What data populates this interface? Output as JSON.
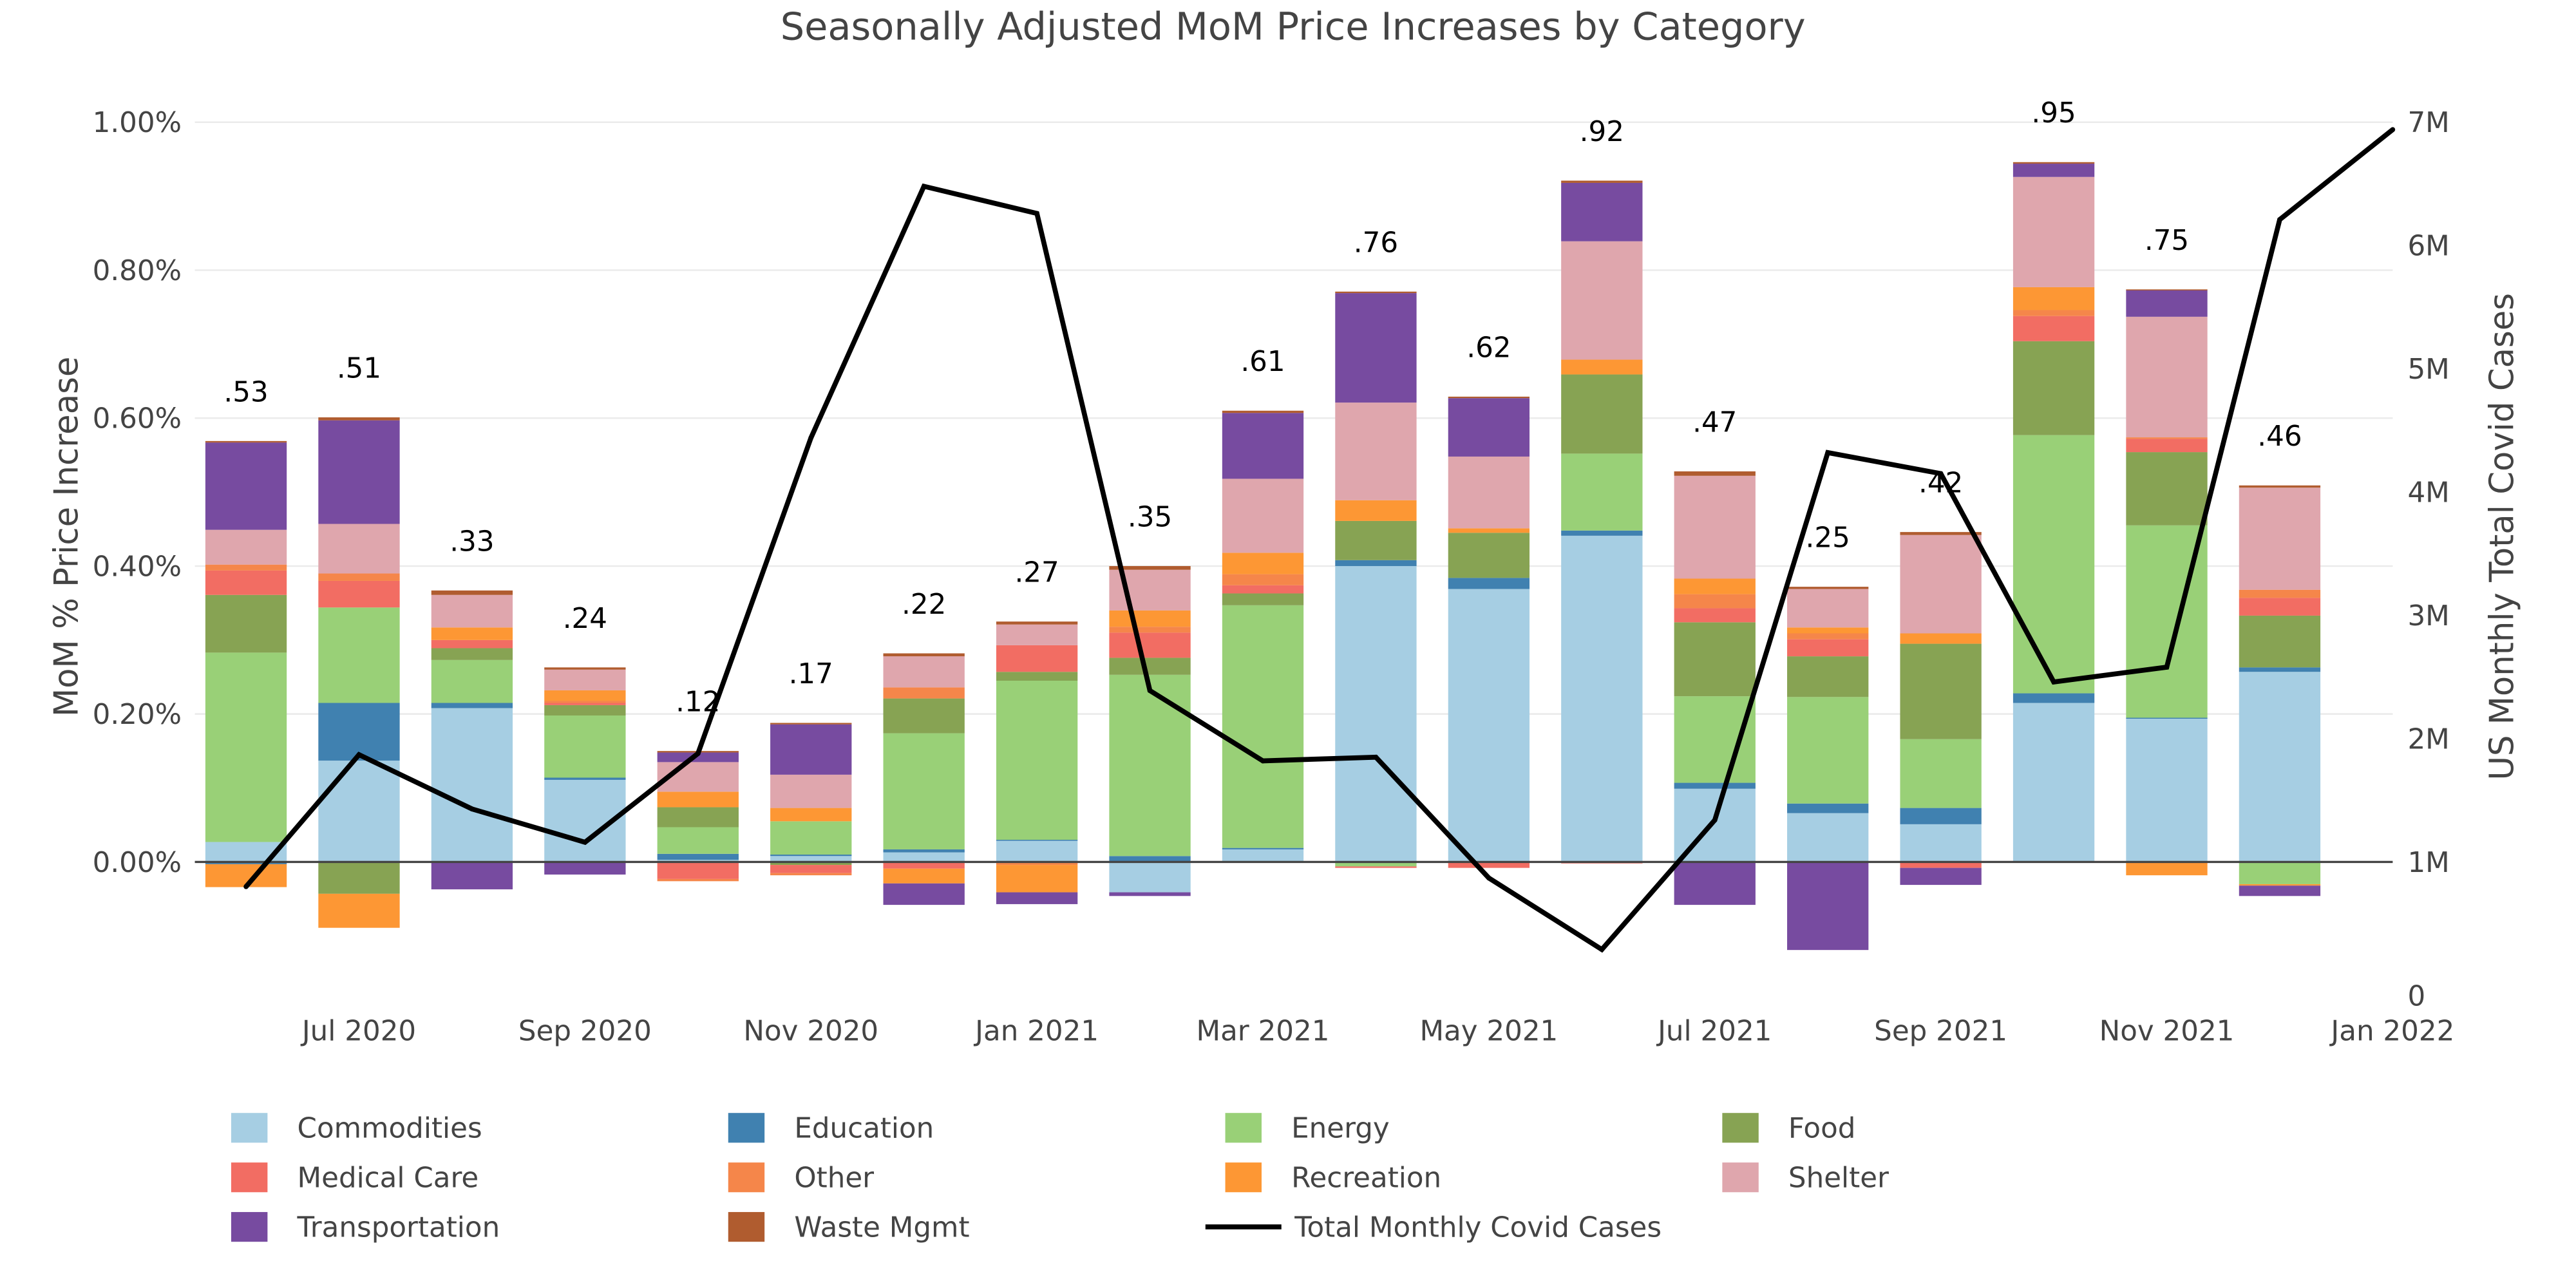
{
  "chart_data": {
    "type": "bar",
    "barmode": "relative-stacked",
    "title": "Seasonally Adjusted MoM Price Increases by Category",
    "ylabel": "MoM % Price Increase",
    "y2label": "US Monthly Total Covid Cases",
    "ylim": [
      -0.18,
      1.075
    ],
    "y2lim": [
      -0.08,
      7.45
    ],
    "grid": true,
    "legend_position": "bottom",
    "y_ticks": [
      "0.00%",
      "0.20%",
      "0.40%",
      "0.60%",
      "0.80%",
      "1.00%"
    ],
    "y_tick_values": [
      0,
      0.2,
      0.4,
      0.6,
      0.8,
      1.0
    ],
    "y2_ticks": [
      "0",
      "1M",
      "2M",
      "3M",
      "4M",
      "5M",
      "6M",
      "7M"
    ],
    "y2_tick_values": [
      0,
      1,
      2,
      3,
      4,
      5,
      6,
      7
    ],
    "x_ticks": [
      "Jul 2020",
      "Sep 2020",
      "Nov 2020",
      "Jan 2021",
      "Mar 2021",
      "May 2021",
      "Jul 2021",
      "Sep 2021",
      "Nov 2021",
      "Jan 2022"
    ],
    "x_tick_values": [
      "2020-07",
      "2020-09",
      "2020-11",
      "2021-01",
      "2021-03",
      "2021-05",
      "2021-07",
      "2021-09",
      "2021-11",
      "2022-01"
    ],
    "categories": [
      "2020-06",
      "2020-07",
      "2020-08",
      "2020-09",
      "2020-10",
      "2020-11",
      "2020-12",
      "2021-01",
      "2021-02",
      "2021-03",
      "2021-04",
      "2021-05",
      "2021-06",
      "2021-07",
      "2021-08",
      "2021-09",
      "2021-10",
      "2021-11",
      "2021-12"
    ],
    "series": [
      {
        "name": "Commodities",
        "color": "#a6cee3",
        "values": [
          0.027,
          0.137,
          0.208,
          0.111,
          0.003,
          0.008,
          0.013,
          0.029,
          -0.041,
          0.017,
          0.4,
          0.369,
          0.441,
          0.099,
          0.066,
          0.051,
          0.215,
          0.194,
          0.257
        ]
      },
      {
        "name": "Education",
        "color": "#4081b0",
        "values": [
          -0.003,
          0.078,
          0.007,
          0.003,
          0.008,
          0.002,
          0.004,
          0.001,
          0.008,
          0.002,
          0.008,
          0.015,
          0.007,
          0.008,
          0.013,
          0.022,
          0.013,
          0.001,
          0.006
        ]
      },
      {
        "name": "Energy",
        "color": "#99d077",
        "values": [
          0.256,
          0.129,
          0.058,
          0.084,
          0.036,
          0.045,
          0.157,
          0.215,
          0.245,
          0.328,
          -0.006,
          0,
          0.104,
          0.117,
          0.144,
          0.093,
          0.349,
          0.26,
          -0.03
        ]
      },
      {
        "name": "Food",
        "color": "#87a353",
        "values": [
          0.078,
          -0.043,
          0.016,
          0.014,
          0.027,
          -0.004,
          0.047,
          0.012,
          0.023,
          0.016,
          0.053,
          0.061,
          0.107,
          0.1,
          0.055,
          0.129,
          0.127,
          0.099,
          0.07
        ]
      },
      {
        "name": "Medical Care",
        "color": "#f26d63",
        "values": [
          0.033,
          0.036,
          0.011,
          0.003,
          -0.023,
          -0.011,
          -0.009,
          0.036,
          0.034,
          0.011,
          -0.002,
          -0.008,
          -0.002,
          0.019,
          0.023,
          -0.008,
          0.034,
          0.018,
          0.024
        ]
      },
      {
        "name": "Other",
        "color": "#f5864a",
        "values": [
          0.008,
          0.01,
          0,
          0.003,
          -0.003,
          -0.003,
          0.015,
          -0.004,
          0.008,
          0.015,
          0,
          0,
          0,
          0.019,
          0.008,
          0,
          0.008,
          0.002,
          0.011
        ]
      },
      {
        "name": "Recreation",
        "color": "#fd9734",
        "values": [
          -0.031,
          -0.046,
          0.017,
          0.014,
          0.021,
          0.018,
          -0.02,
          -0.037,
          0.022,
          0.029,
          0.028,
          0.006,
          0.02,
          0.021,
          0.008,
          0.014,
          0.031,
          -0.018,
          -0.002
        ]
      },
      {
        "name": "Shelter",
        "color": "#dfa6ad",
        "values": [
          0.047,
          0.067,
          0.044,
          0.028,
          0.04,
          0.045,
          0.042,
          0.028,
          0.055,
          0.1,
          0.132,
          0.097,
          0.16,
          0.139,
          0.052,
          0.133,
          0.149,
          0.163,
          0.138
        ]
      },
      {
        "name": "Transportation",
        "color": "#774ba0",
        "values": [
          0.118,
          0.14,
          -0.037,
          -0.017,
          0.013,
          0.068,
          -0.029,
          -0.016,
          -0.005,
          0.089,
          0.148,
          0.079,
          0.079,
          -0.058,
          -0.119,
          -0.023,
          0.018,
          0.036,
          -0.014
        ]
      },
      {
        "name": "Waste Mgmt",
        "color": "#b05c2f",
        "values": [
          0.002,
          0.004,
          0.006,
          0.003,
          0.002,
          0.002,
          0.004,
          0.004,
          0.005,
          0.003,
          0.002,
          0.002,
          0.003,
          0.006,
          0.003,
          0.004,
          0.002,
          0.001,
          0.003
        ]
      }
    ],
    "bar_labels": [
      ".53",
      ".51",
      ".33",
      ".24",
      ".12",
      ".17",
      ".22",
      ".27",
      ".35",
      ".61",
      ".76",
      ".62",
      ".92",
      ".47",
      ".25",
      ".42",
      ".95",
      ".75",
      ".46"
    ],
    "line": {
      "name": "Total Monthly Covid Cases",
      "color": "#000000",
      "axis": "y2",
      "unit": "millions",
      "x": [
        "2020-06",
        "2020-07",
        "2020-08",
        "2020-09",
        "2020-10",
        "2020-11",
        "2020-12",
        "2021-01",
        "2021-02",
        "2021-03",
        "2021-04",
        "2021-05",
        "2021-06",
        "2021-07",
        "2021-08",
        "2021-09",
        "2021-10",
        "2021-11",
        "2021-12",
        "2022-01"
      ],
      "values": [
        0.8,
        1.87,
        1.43,
        1.16,
        1.88,
        4.44,
        6.48,
        6.26,
        2.39,
        1.82,
        1.85,
        0.87,
        0.29,
        1.34,
        4.32,
        4.15,
        2.46,
        2.58,
        6.21,
        6.94
      ]
    }
  }
}
